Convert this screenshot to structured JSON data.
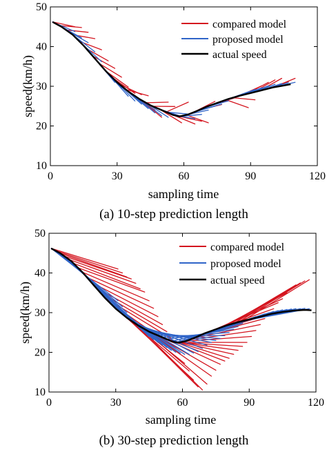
{
  "colors": {
    "compared": "#d4141e",
    "proposed": "#2f64c8",
    "actual": "#000000"
  },
  "chart_data": [
    {
      "type": "line",
      "caption": "(a) 10-step prediction length",
      "xlabel": "sampling time",
      "ylabel": "speed(km/h)",
      "xlim": [
        0,
        120
      ],
      "ylim": [
        10,
        50
      ],
      "xticks": [
        "0",
        "30",
        "60",
        "90",
        "120"
      ],
      "yticks": [
        "10",
        "20",
        "30",
        "40",
        "50"
      ],
      "legend": {
        "position": "top-right",
        "entries": [
          "compared model",
          "proposed model",
          "actual speed"
        ]
      },
      "horizon": 10,
      "actual_speed": {
        "x": [
          1,
          5,
          10,
          15,
          20,
          25,
          30,
          35,
          40,
          45,
          50,
          55,
          58,
          62,
          66,
          70,
          75,
          80,
          85,
          90,
          95,
          100,
          104,
          108
        ],
        "y": [
          46.2,
          45.0,
          43.0,
          40.2,
          37.0,
          33.8,
          31.0,
          28.7,
          26.8,
          25.2,
          24.0,
          22.8,
          22.4,
          22.9,
          23.8,
          24.8,
          25.8,
          26.8,
          27.6,
          28.3,
          29.0,
          29.7,
          30.1,
          30.5
        ]
      },
      "compared_model": {
        "starts": [
          1,
          4,
          7,
          10,
          13,
          16,
          19,
          22,
          25,
          28,
          31,
          34,
          37,
          40,
          43,
          46,
          49,
          52,
          55,
          58,
          61,
          64,
          67,
          70,
          73,
          76,
          79,
          82,
          85,
          88,
          91,
          94,
          97,
          100
        ],
        "end_values": [
          45.0,
          44.8,
          43.6,
          42.0,
          39.2,
          36.4,
          34.5,
          32.3,
          29.8,
          28.2,
          27.9,
          27.6,
          24.0,
          22.2,
          26.0,
          24.9,
          20.8,
          26.0,
          20.5,
          21.2,
          20.8,
          26.2,
          25.4,
          26.5,
          27.1,
          27.8,
          24.6,
          26.6,
          30.1,
          31.0,
          31.6,
          32.0,
          31.2,
          32.0
        ]
      },
      "proposed_model": {
        "starts": [
          1,
          4,
          7,
          10,
          13,
          16,
          19,
          22,
          25,
          28,
          31,
          34,
          37,
          40,
          43,
          46,
          49,
          52,
          55,
          58,
          61,
          64,
          67,
          70,
          73,
          76,
          79,
          82,
          85,
          88,
          91,
          94,
          97,
          100
        ],
        "end_values": [
          43.8,
          42.2,
          41.0,
          38.7,
          36.2,
          33.2,
          31.0,
          29.5,
          27.5,
          26.3,
          25.5,
          24.4,
          23.3,
          22.6,
          22.2,
          22.6,
          22.4,
          23.0,
          21.8,
          22.9,
          24.0,
          25.0,
          25.5,
          26.3,
          27.2,
          27.9,
          28.6,
          29.2,
          29.6,
          30.1,
          30.5,
          30.7,
          30.9,
          31.0
        ]
      }
    },
    {
      "type": "line",
      "caption": "(b) 30-step prediction length",
      "xlabel": "sampling time",
      "ylabel": "speed(km/h)",
      "xlim": [
        0,
        120
      ],
      "ylim": [
        10,
        50
      ],
      "xticks": [
        "0",
        "30",
        "60",
        "90",
        "120"
      ],
      "yticks": [
        "10",
        "20",
        "30",
        "40",
        "50"
      ],
      "legend": {
        "position": "top-right",
        "entries": [
          "compared model",
          "proposed model",
          "actual speed"
        ]
      },
      "horizon": 30,
      "actual_speed": {
        "x": [
          1,
          5,
          10,
          15,
          20,
          25,
          30,
          35,
          40,
          45,
          50,
          55,
          58,
          62,
          66,
          70,
          75,
          80,
          85,
          90,
          95,
          100,
          105,
          110,
          115,
          118
        ],
        "y": [
          46.2,
          45.0,
          43.0,
          40.2,
          37.0,
          33.8,
          31.0,
          28.7,
          26.8,
          25.2,
          24.0,
          22.8,
          22.4,
          22.9,
          23.8,
          24.8,
          25.8,
          26.8,
          27.6,
          28.3,
          29.0,
          29.7,
          30.2,
          30.5,
          30.7,
          30.6
        ]
      },
      "compared_model": {
        "starts": [
          1,
          3,
          5,
          7,
          9,
          11,
          13,
          15,
          17,
          19,
          21,
          23,
          25,
          27,
          29,
          31,
          33,
          35,
          37,
          39,
          41,
          43,
          45,
          47,
          49,
          51,
          53,
          55,
          57,
          59,
          61,
          63,
          65,
          67,
          69,
          71,
          73,
          75,
          77,
          79,
          81,
          83,
          85,
          87
        ],
        "end_values": [
          41.0,
          40.0,
          39.0,
          38.5,
          37.4,
          36.0,
          35.2,
          33.0,
          31.1,
          29.0,
          27.0,
          25.2,
          23.5,
          21.0,
          19.5,
          17.2,
          15.3,
          13.0,
          11.3,
          10.5,
          12.0,
          14.0,
          15.5,
          17.0,
          17.8,
          18.5,
          19.5,
          20.5,
          21.5,
          22.5,
          24.0,
          25.5,
          27.0,
          28.5,
          29.5,
          31.0,
          32.5,
          33.5,
          35.0,
          36.0,
          37.0,
          37.5,
          38.0,
          38.3
        ]
      },
      "proposed_model": {
        "starts": [
          1,
          3,
          5,
          7,
          9,
          11,
          13,
          15,
          17,
          19,
          21,
          23,
          25,
          27,
          29,
          31,
          33,
          35,
          37,
          39,
          41,
          43,
          45,
          47,
          49,
          51,
          53,
          55,
          57,
          59,
          61,
          63,
          65,
          67,
          69,
          71,
          73,
          75,
          77,
          79,
          81,
          83,
          85,
          87
        ],
        "end_values": [
          33.0,
          31.5,
          30.0,
          28.5,
          27.2,
          26.0,
          25.0,
          24.0,
          23.2,
          22.5,
          21.8,
          21.2,
          20.5,
          20.0,
          19.8,
          19.5,
          19.5,
          19.8,
          20.2,
          21.0,
          21.8,
          22.5,
          23.0,
          23.5,
          24.2,
          25.0,
          25.8,
          26.5,
          27.3,
          28.0,
          28.5,
          29.0,
          29.3,
          29.7,
          30.0,
          30.3,
          30.5,
          30.7,
          30.8,
          30.9,
          31.0,
          31.0,
          31.1,
          31.0
        ]
      }
    }
  ]
}
